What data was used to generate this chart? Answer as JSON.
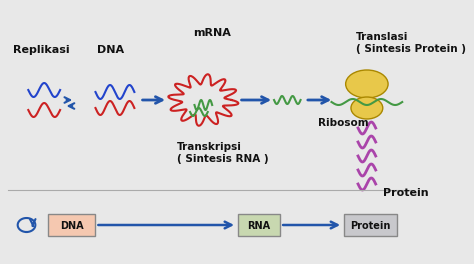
{
  "bg_color": "#e8e8e8",
  "title_replikasi": "Replikasi",
  "title_dna": "DNA",
  "title_mrna": "mRNA",
  "title_transkripsi": "Transkripsi\n( Sintesis RNA )",
  "title_translasi": "Translasi\n( Sintesis Protein )",
  "title_ribosom": "Ribosom",
  "title_protein": "Protein",
  "label_dna": "DNA",
  "label_rna": "RNA",
  "label_prot": "Protein",
  "arrow_color": "#2255aa",
  "dna_color_red": "#cc2222",
  "dna_color_blue": "#2244cc",
  "mrna_color": "#cc2222",
  "trna_color": "#449944",
  "ribosom_color": "#e8c84a",
  "protein_color": "#aa44aa",
  "box_dna_color": "#f5c8b0",
  "box_rna_color": "#c8d8b0",
  "box_prot_color": "#c8c8cc",
  "text_color": "#111111",
  "bold_color": "#111111"
}
